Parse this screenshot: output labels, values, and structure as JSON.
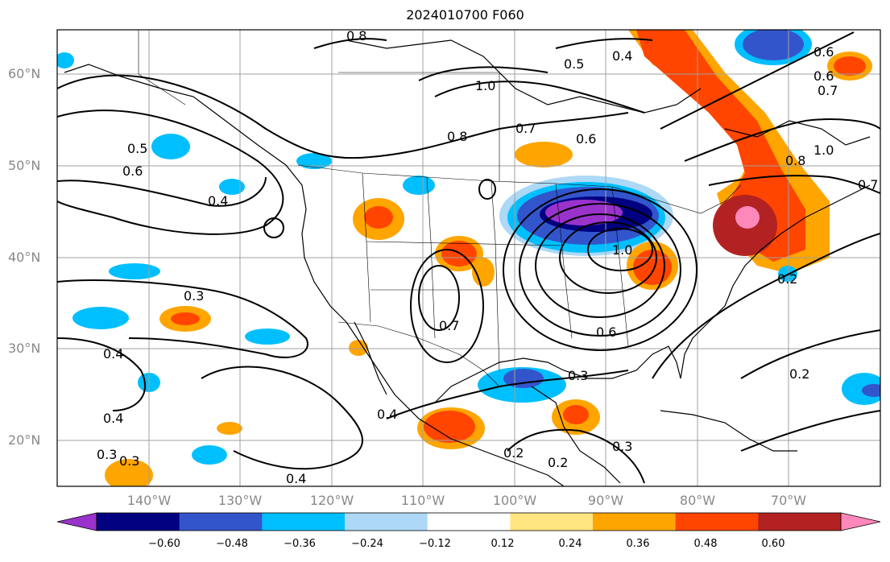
{
  "title": "2024010700 F060",
  "lat_labels": [
    "60°N",
    "50°N",
    "40°N",
    "30°N",
    "20°N"
  ],
  "lon_labels": [
    "140°W",
    "130°W",
    "120°W",
    "110°W",
    "100°W",
    "90°W",
    "80°W",
    "70°W"
  ],
  "colorbar": {
    "ticks": [
      "−0.60",
      "−0.48",
      "−0.36",
      "−0.24",
      "−0.12",
      "0.12",
      "0.24",
      "0.36",
      "0.48",
      "0.60"
    ],
    "colors": [
      "#9933cc",
      "#000080",
      "#3355cc",
      "#00bfff",
      "#add8f6",
      "#ffffff",
      "#ffe680",
      "#ffa500",
      "#ff4500",
      "#b22222",
      "#ff88bb"
    ]
  },
  "contour_labels": [
    "0.8",
    "0.4",
    "0.5",
    "1.0",
    "0.7",
    "0.6",
    "0.8",
    "0.6",
    "0.5",
    "0.6",
    "0.4",
    "0.3",
    "0.7",
    "0.6",
    "0.3",
    "0.2",
    "0.4",
    "0.4",
    "0.2",
    "0.2",
    "0.3",
    "0.3",
    "0.4",
    "0.3",
    "1.0",
    "0.8",
    "0.7",
    "1.0",
    "0.6",
    "0.7",
    "0.2",
    "0.4"
  ]
}
